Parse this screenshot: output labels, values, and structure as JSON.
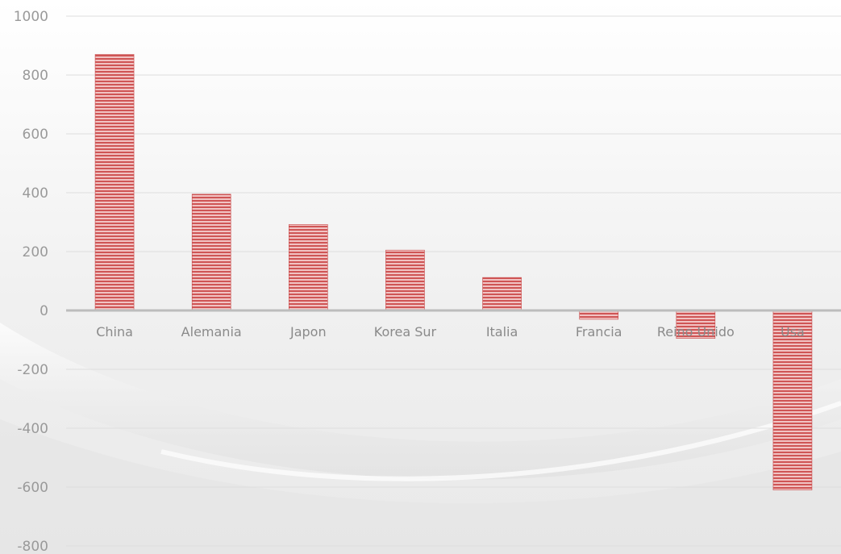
{
  "chart_data": {
    "type": "bar",
    "categories": [
      "China",
      "Alemania",
      "Japon",
      "Korea Sur",
      "Italia",
      "Francia",
      "Reino Unido",
      "Usa"
    ],
    "values": [
      870,
      395,
      292,
      205,
      112,
      -30,
      -95,
      -610
    ],
    "ylim": [
      -800,
      1000
    ],
    "yticks": [
      1000,
      800,
      600,
      400,
      200,
      0,
      -200,
      -400,
      -600,
      -800
    ],
    "grid": true,
    "legend": "none",
    "colors": {
      "bar_fill": "#e8a3a3",
      "bar_stripe": "#c94a4a",
      "grid": "#dedede",
      "axis": "#bdbdbd"
    }
  }
}
